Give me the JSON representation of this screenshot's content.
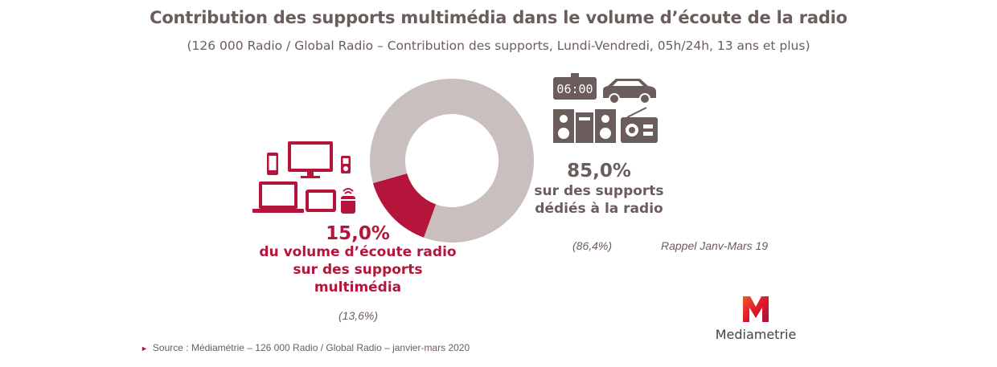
{
  "title": "Contribution des supports multimédia dans le volume d’écoute de la radio",
  "subtitle": "(126 000 Radio / Global Radio – Contribution des supports, Lundi-Vendredi, 05h/24h, 13 ans et plus)",
  "chart_data": {
    "type": "pie",
    "variant": "donut",
    "title": "Contribution des supports multimédia dans le volume d’écoute de la radio",
    "slices": [
      {
        "label": "du volume d’écoute radio sur des supports multimédia",
        "value": 15.0,
        "display": "15,0%",
        "previous": "(13,6%)",
        "color": "#b5153a"
      },
      {
        "label": "sur des supports dédiés à la radio",
        "value": 85.0,
        "display": "85,0%",
        "previous": "(86,4%)",
        "color": "#c8bfbe"
      }
    ],
    "previous_period_label": "Rappel Janv-Mars 19"
  },
  "multimedia": {
    "pct": "15,0%",
    "line1": "du volume d’écoute radio",
    "line2": "sur des supports",
    "line3": "multimédia",
    "previous": "(13,6%)"
  },
  "dedicated": {
    "pct": "85,0%",
    "line1": "sur des supports",
    "line2": "dédiés à la radio",
    "previous": "(86,4%)"
  },
  "rappel_label": "Rappel Janv-Mars 19",
  "clock_text": "06:00",
  "source": "Source : Médiamétrie – 126 000 Radio / Global Radio – janvier-mars 2020",
  "logo": {
    "text": "Mediametrie",
    "letter": "M"
  },
  "icons": {
    "multimedia": [
      "smartphone-icon",
      "monitor-icon",
      "mp3-player-icon",
      "laptop-icon",
      "tablet-icon",
      "smart-speaker-icon"
    ],
    "dedicated": [
      "radio-clock-icon",
      "car-icon",
      "hifi-system-icon",
      "portable-radio-icon"
    ]
  },
  "colors": {
    "accent_red": "#b5153a",
    "grey_text": "#6b5d5b",
    "donut_grey": "#c8bfbe"
  }
}
